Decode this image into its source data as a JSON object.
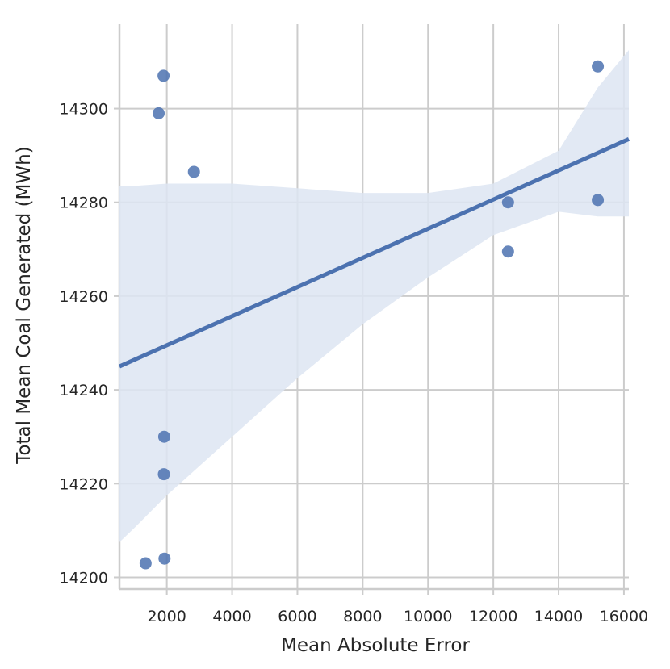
{
  "chart_data": {
    "type": "scatter",
    "title": "",
    "xlabel": "Mean Absolute Error",
    "ylabel": "Total Mean Coal Generated (MWh)",
    "xlim": [
      550,
      16150
    ],
    "ylim": [
      14197.5,
      14318
    ],
    "xticks": [
      2000,
      4000,
      6000,
      8000,
      10000,
      12000,
      14000,
      16000
    ],
    "yticks": [
      14200,
      14220,
      14240,
      14260,
      14280,
      14300
    ],
    "grid": true,
    "point_color": "#4c72b0",
    "line_color": "#4c72b0",
    "band_color": "#dde5f2",
    "points": [
      {
        "x": 1350,
        "y": 14203
      },
      {
        "x": 1750,
        "y": 14299
      },
      {
        "x": 1900,
        "y": 14307
      },
      {
        "x": 1920,
        "y": 14230
      },
      {
        "x": 1910,
        "y": 14222
      },
      {
        "x": 1930,
        "y": 14204
      },
      {
        "x": 2830,
        "y": 14286.5
      },
      {
        "x": 12450,
        "y": 14280
      },
      {
        "x": 12450,
        "y": 14269.5
      },
      {
        "x": 15200,
        "y": 14309
      },
      {
        "x": 15200,
        "y": 14280.5
      }
    ],
    "regression": {
      "x": [
        550,
        16150
      ],
      "y": [
        14245,
        14293.5
      ]
    },
    "confidence_band": {
      "x": [
        550,
        1000,
        2000,
        4000,
        6000,
        8000,
        10000,
        12000,
        14000,
        15200,
        16150
      ],
      "upper": [
        14283.5,
        14283.5,
        14284,
        14284,
        14283,
        14282,
        14282,
        14284,
        14291,
        14304.5,
        14312.5
      ],
      "lower": [
        14207.5,
        14210.5,
        14217.5,
        14230,
        14242.5,
        14254,
        14264,
        14273,
        14278,
        14277,
        14277
      ]
    }
  }
}
